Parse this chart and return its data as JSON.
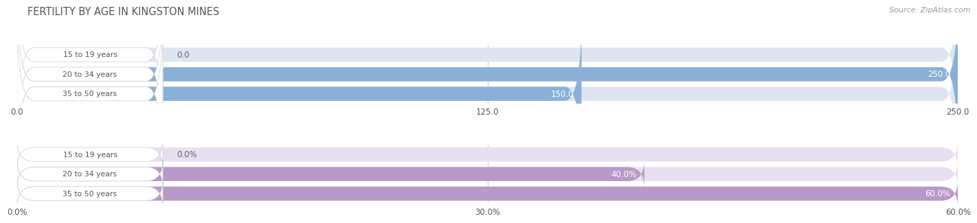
{
  "title": "FERTILITY BY AGE IN KINGSTON MINES",
  "source": "Source: ZipAtlas.com",
  "chart1": {
    "categories": [
      "15 to 19 years",
      "20 to 34 years",
      "35 to 50 years"
    ],
    "values": [
      0.0,
      250.0,
      150.0
    ],
    "xlim": [
      0,
      250
    ],
    "xticks": [
      0.0,
      125.0,
      250.0
    ],
    "bar_color": "#8ab0d8",
    "bg_color": "#dde6f0",
    "label_bg": "#f0f4f8",
    "value_labels": [
      "0.0",
      "250.0",
      "150.0"
    ]
  },
  "chart2": {
    "categories": [
      "15 to 19 years",
      "20 to 34 years",
      "35 to 50 years"
    ],
    "values": [
      0.0,
      40.0,
      60.0
    ],
    "xlim": [
      0,
      60
    ],
    "xticks": [
      0.0,
      30.0,
      60.0
    ],
    "xtick_labels": [
      "0.0%",
      "30.0%",
      "60.0%"
    ],
    "bar_color": "#b899c8",
    "bg_color": "#e8dff0",
    "label_bg": "#f2eef6",
    "value_labels": [
      "0.0%",
      "40.0%",
      "60.0%"
    ]
  },
  "label_color": "#555555",
  "value_color_inside": "#ffffff",
  "value_color_outside": "#666666",
  "title_color": "#555555",
  "source_color": "#999999",
  "fig_bg": "#ffffff"
}
